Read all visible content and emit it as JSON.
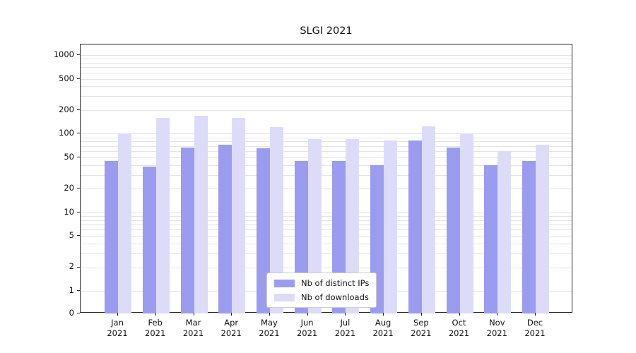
{
  "figure": {
    "title": "SLGI 2021"
  },
  "chart_data": {
    "type": "bar",
    "title": "SLGI 2021",
    "categories": [
      "Jan",
      "Feb",
      "Mar",
      "Apr",
      "May",
      "Jun",
      "Jul",
      "Aug",
      "Sep",
      "Oct",
      "Nov",
      "Dec"
    ],
    "category_year": "2021",
    "series": [
      {
        "name": "Nb of distinct IPs",
        "color": "#9b9bef",
        "values": [
          45,
          38,
          67,
          72,
          65,
          45,
          45,
          40,
          82,
          67,
          40,
          45
        ]
      },
      {
        "name": "Nb of downloads",
        "color": "#dcdcf9",
        "values": [
          100,
          160,
          170,
          160,
          122,
          85,
          85,
          82,
          125,
          100,
          60,
          73
        ]
      }
    ],
    "yscale": "symlog",
    "ylim": [
      0,
      1200
    ],
    "yticks": [
      0,
      1,
      2,
      5,
      10,
      20,
      50,
      100,
      200,
      500,
      1000
    ],
    "grid": true,
    "legend_position": "lower center"
  },
  "colors": {
    "background": "#ffffff",
    "grid": "#e4e4e4",
    "spine": "#262626",
    "bar_ips": "#9b9bef",
    "bar_downloads": "#dcdcf9"
  }
}
